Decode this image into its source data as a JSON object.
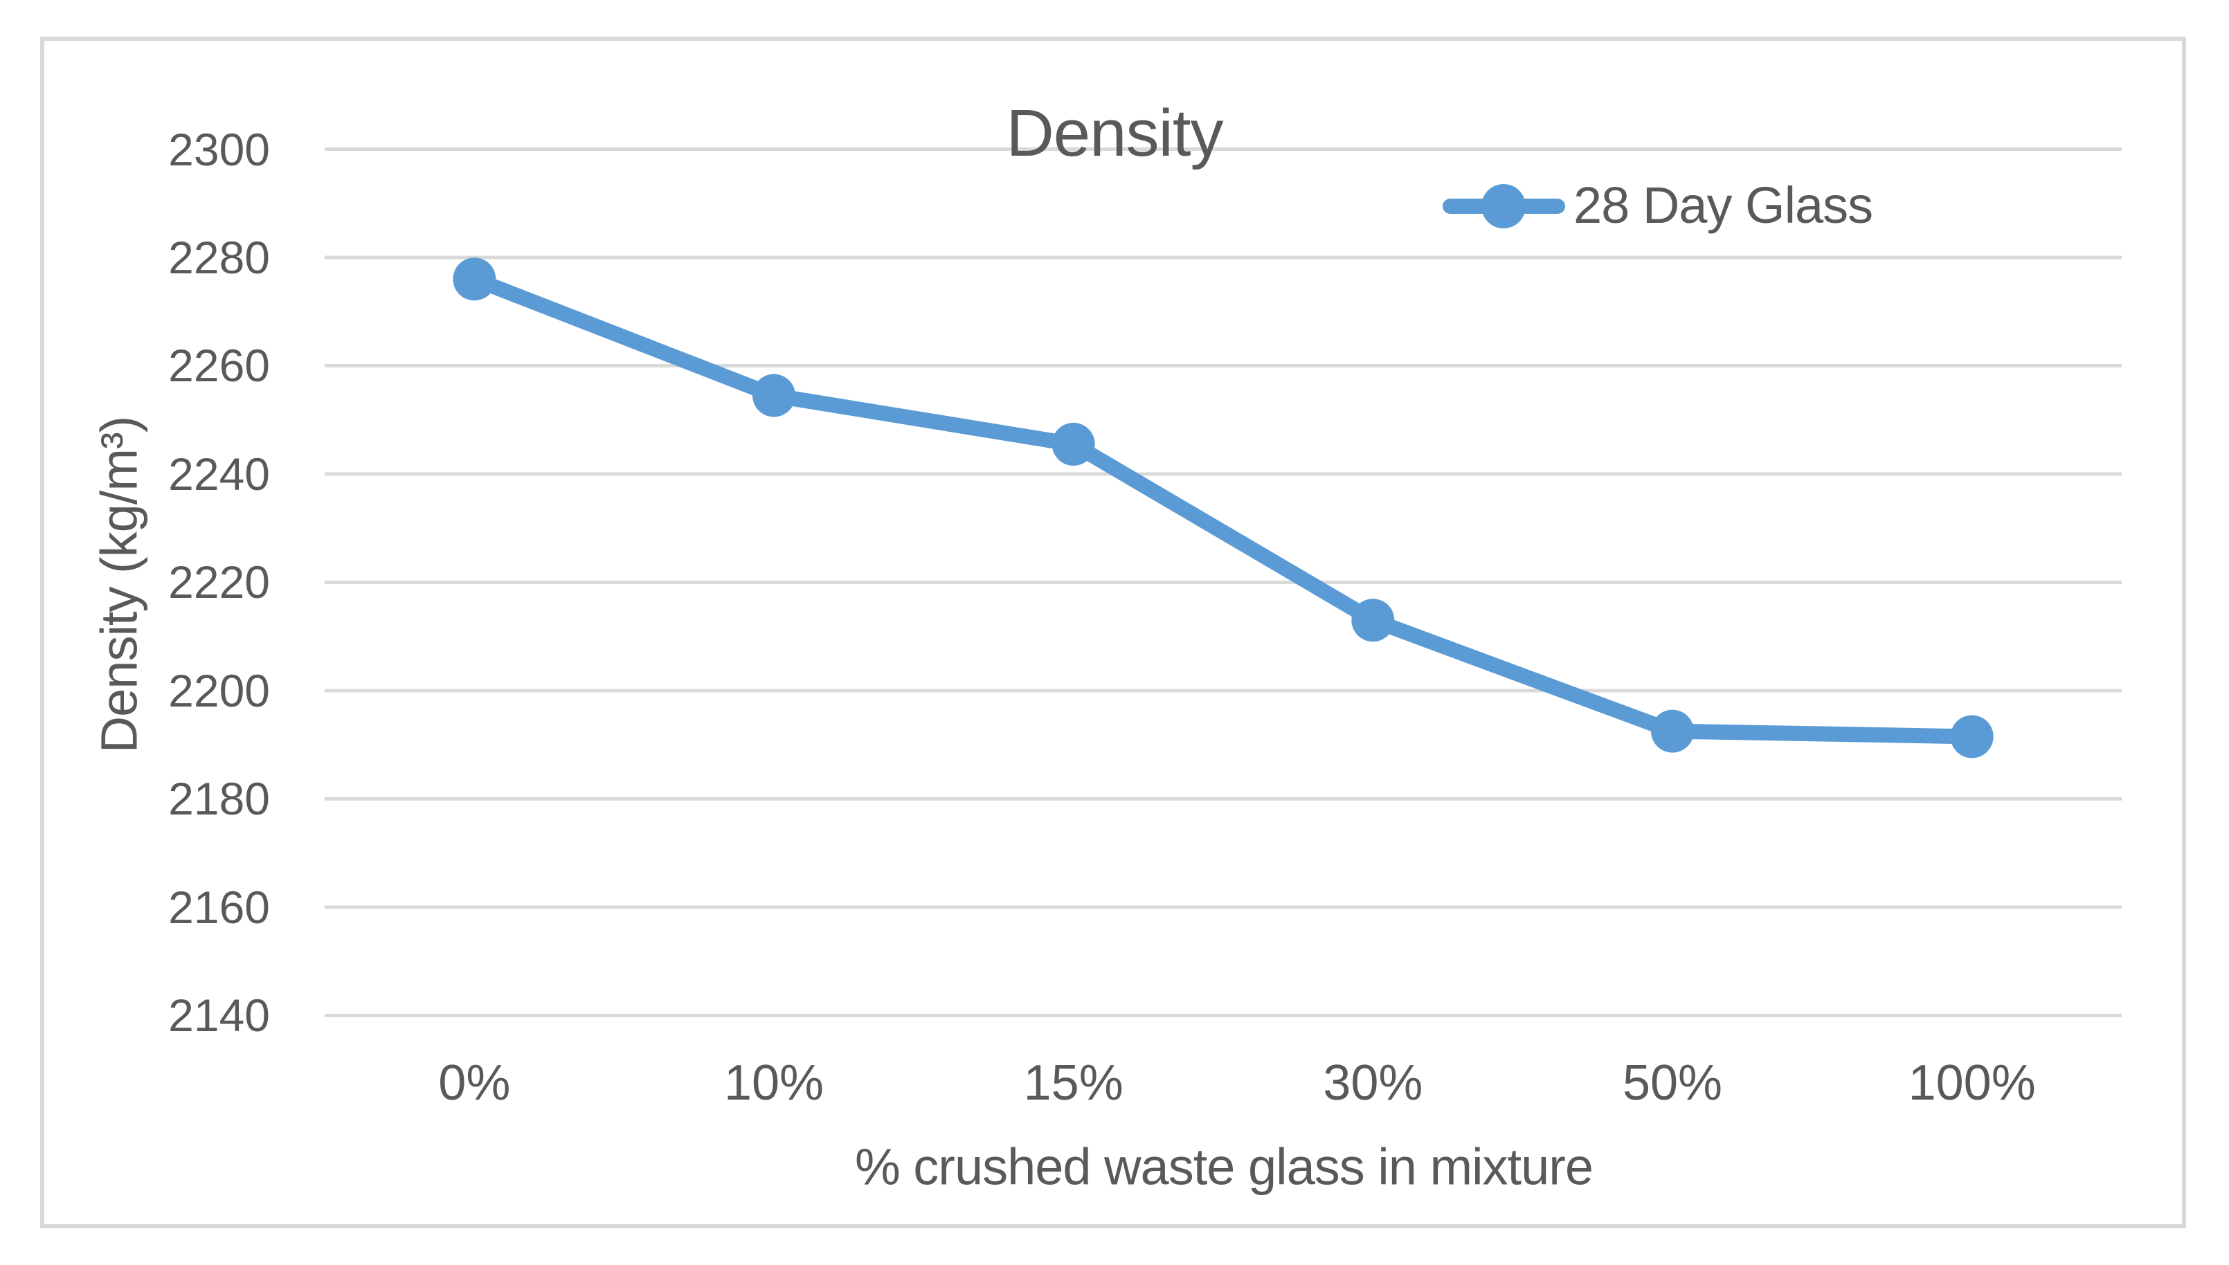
{
  "chart_data": {
    "type": "line",
    "title": "Density",
    "categories": [
      "0%",
      "10%",
      "15%",
      "30%",
      "50%",
      "100%"
    ],
    "series": [
      {
        "name": "28 Day Glass",
        "values": [
          2276,
          2254.5,
          2245.5,
          2213,
          2192.5,
          2191.5
        ],
        "color": "#5B9BD5"
      }
    ],
    "xlabel": "% crushed waste glass in mixture",
    "ylabel": "Density (kg/m³)",
    "ylim": [
      2140,
      2300
    ],
    "y_ticks": [
      2300,
      2280,
      2260,
      2240,
      2220,
      2200,
      2180,
      2160,
      2140
    ],
    "grid": "horizontal-only",
    "legend_position": "top-right-inside",
    "colors": {
      "series_line": "#5B9BD5",
      "gridline": "#D9D9D9",
      "chart_border": "#D9D9D9",
      "text": "#595959"
    }
  }
}
